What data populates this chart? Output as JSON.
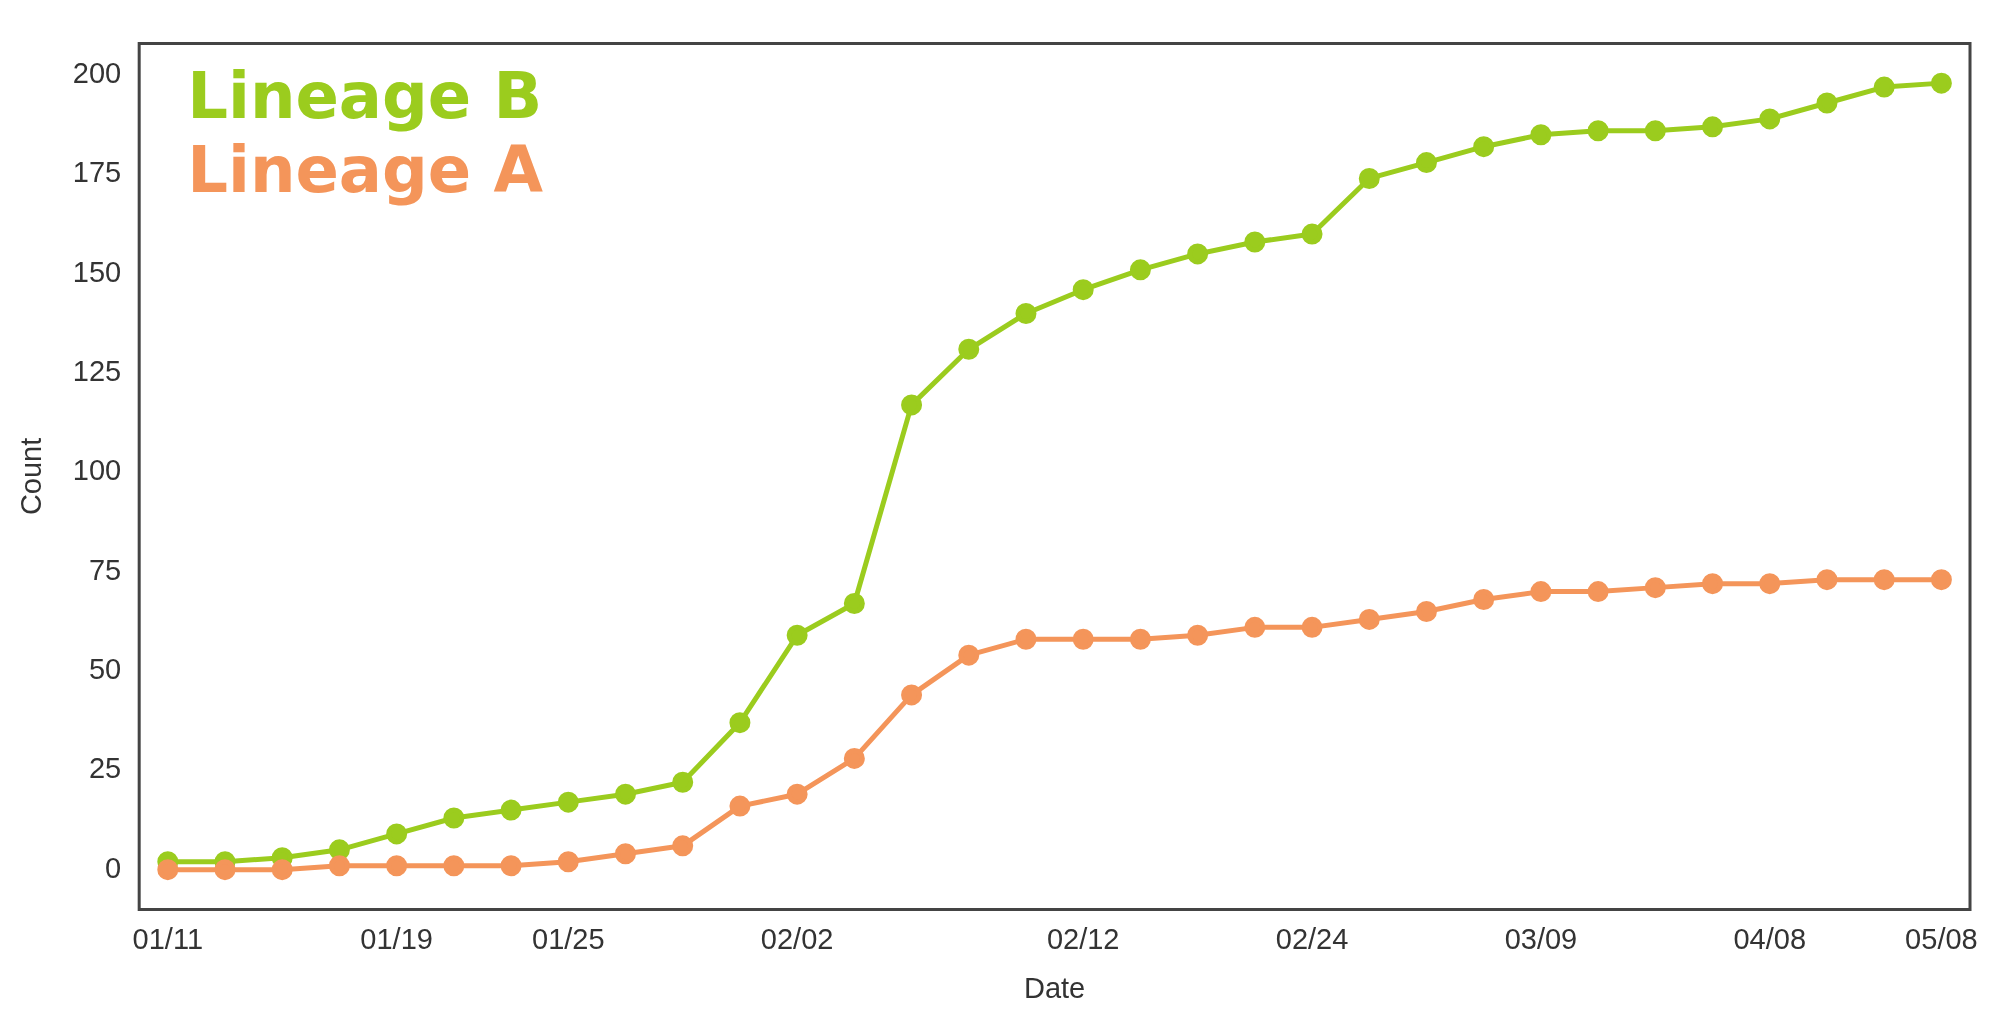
{
  "chart_data": {
    "type": "line",
    "xlabel": "Date",
    "ylabel": "Count",
    "categories": [
      "01/11",
      null,
      null,
      null,
      "01/19",
      null,
      null,
      "01/25",
      null,
      null,
      null,
      "02/02",
      null,
      null,
      null,
      null,
      "02/12",
      null,
      null,
      null,
      "02/24",
      null,
      null,
      null,
      "03/09",
      null,
      null,
      null,
      "04/08",
      null,
      null,
      "05/08"
    ],
    "series": [
      {
        "name": "Lineage B",
        "color": "#9bcc1e",
        "values": [
          2,
          2,
          3,
          5,
          9,
          13,
          15,
          17,
          19,
          22,
          37,
          59,
          67,
          117,
          131,
          140,
          146,
          151,
          155,
          158,
          160,
          174,
          178,
          182,
          185,
          186,
          186,
          187,
          189,
          193,
          197,
          198
        ]
      },
      {
        "name": "Lineage A",
        "color": "#f4955a",
        "values": [
          0,
          0,
          0,
          1,
          1,
          1,
          1,
          2,
          4,
          6,
          16,
          19,
          28,
          44,
          54,
          58,
          58,
          58,
          59,
          61,
          61,
          63,
          65,
          68,
          70,
          70,
          71,
          72,
          72,
          73,
          73,
          73
        ]
      }
    ],
    "ylim": [
      -10,
      208
    ],
    "yticks": [
      0,
      25,
      50,
      75,
      100,
      125,
      150,
      175,
      200
    ],
    "grid": false,
    "legend": "top left",
    "marker": "circle",
    "line_style": "solid"
  }
}
